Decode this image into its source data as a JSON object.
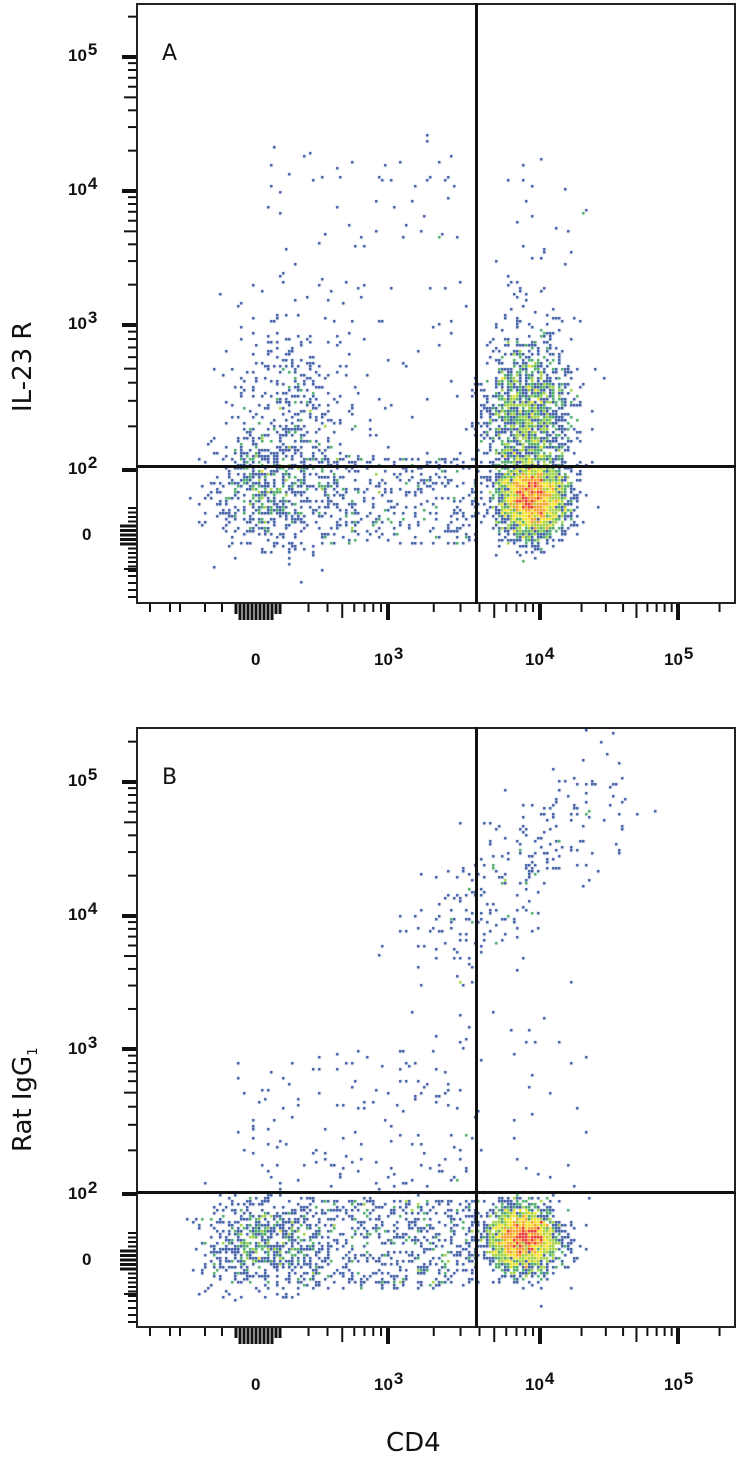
{
  "chart_data": [
    {
      "type": "scatter",
      "subtype": "flow-cytometry-density-dot-plot",
      "panel_label": "A",
      "xlabel": "CD4",
      "ylabel": "IL-23 R",
      "x_scale": "biexponential (log)",
      "y_scale": "biexponential (log)",
      "x_ticks": [
        "0",
        "10^3",
        "10^4",
        "10^5"
      ],
      "y_ticks": [
        "0",
        "10^2",
        "10^3",
        "10^4",
        "10^5"
      ],
      "quadrant_gate": {
        "x": 3500,
        "y": 110
      },
      "populations": [
        {
          "name": "CD4- IL-23R-",
          "x_center": 100,
          "y_center": 50,
          "density": "medium"
        },
        {
          "name": "CD4+ IL-23R-",
          "x_center": 9000,
          "y_center": 50,
          "density": "high (peak red)"
        },
        {
          "name": "CD4+ IL-23R+",
          "x_center": 8500,
          "y_center": 250,
          "density": "medium-high"
        },
        {
          "name": "CD4- IL-23R+",
          "x_center": 250,
          "y_center": 250,
          "density": "low"
        }
      ],
      "color_scale": [
        "#2a4b9b",
        "#3aa35a",
        "#9acd32",
        "#f3e11b",
        "#f7941d",
        "#e8231f"
      ]
    },
    {
      "type": "scatter",
      "subtype": "flow-cytometry-density-dot-plot",
      "panel_label": "B",
      "xlabel": "CD4",
      "ylabel": "Rat IgG1",
      "x_scale": "biexponential (log)",
      "y_scale": "biexponential (log)",
      "x_ticks": [
        "0",
        "10^3",
        "10^4",
        "10^5"
      ],
      "y_ticks": [
        "0",
        "10^2",
        "10^3",
        "10^4",
        "10^5"
      ],
      "quadrant_gate": {
        "x": 3500,
        "y": 110
      },
      "populations": [
        {
          "name": "CD4- IgG-",
          "x_center": 100,
          "y_center": 50,
          "density": "medium"
        },
        {
          "name": "CD4+ IgG-",
          "x_center": 8000,
          "y_center": 50,
          "density": "high (peak red)"
        },
        {
          "name": "CD4+ IgG high (diagonal)",
          "x_center": 15000,
          "y_center": 40000,
          "density": "low"
        },
        {
          "name": "CD4- IgG+",
          "x_center": 300,
          "y_center": 300,
          "density": "very low"
        }
      ],
      "color_scale": [
        "#2a4b9b",
        "#3aa35a",
        "#9acd32",
        "#f3e11b",
        "#f7941d",
        "#e8231f"
      ]
    }
  ],
  "panels": {
    "a": {
      "label": "A",
      "y_title": "IL-23 R",
      "y_ticks": [
        {
          "base": "10",
          "exp": "5"
        },
        {
          "base": "10",
          "exp": "4"
        },
        {
          "base": "10",
          "exp": "3"
        },
        {
          "base": "10",
          "exp": "2"
        },
        {
          "base": "0",
          "exp": ""
        }
      ],
      "x_ticks": [
        {
          "base": "0",
          "exp": ""
        },
        {
          "base": "10",
          "exp": "3"
        },
        {
          "base": "10",
          "exp": "4"
        },
        {
          "base": "10",
          "exp": "5"
        }
      ]
    },
    "b": {
      "label": "B",
      "y_title_main": "Rat IgG",
      "y_title_sub": "1",
      "y_ticks": [
        {
          "base": "10",
          "exp": "5"
        },
        {
          "base": "10",
          "exp": "4"
        },
        {
          "base": "10",
          "exp": "3"
        },
        {
          "base": "10",
          "exp": "2"
        },
        {
          "base": "0",
          "exp": ""
        }
      ],
      "x_ticks": [
        {
          "base": "0",
          "exp": ""
        },
        {
          "base": "10",
          "exp": "3"
        },
        {
          "base": "10",
          "exp": "4"
        },
        {
          "base": "10",
          "exp": "5"
        }
      ]
    }
  },
  "x_axis_title": "CD4"
}
